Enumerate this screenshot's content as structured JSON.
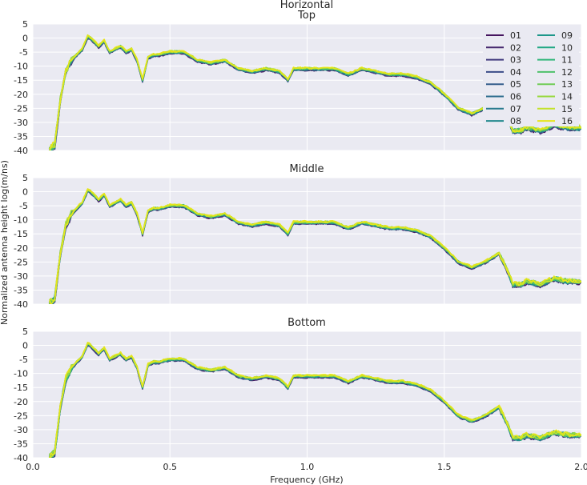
{
  "chart_data": {
    "type": "line",
    "suptitle": "Horizontal",
    "xlabel": "Frequency (GHz)",
    "ylabel": "Normalized antenna height log(m/ns)",
    "xlim": [
      0.0,
      2.0
    ],
    "ylim": [
      -40,
      5
    ],
    "xticks": [
      "0.0",
      "0.5",
      "1.0",
      "1.5",
      "2.0"
    ],
    "yticks": [
      "5",
      "0",
      "-5",
      "-10",
      "-15",
      "-20",
      "-25",
      "-30",
      "-35",
      "-40"
    ],
    "grid": true,
    "colors": [
      "#3f0f54",
      "#46155f",
      "#46286e",
      "#413a7e",
      "#3b4d88",
      "#355d8c",
      "#2e6d8e",
      "#2a7b8e",
      "#23898e",
      "#1e978a",
      "#22a784",
      "#32b67a",
      "#4fc16b",
      "#71cc56",
      "#98d83e",
      "#c3e22c",
      "#e6e51a"
    ],
    "legend": {
      "placement": "upper-right",
      "columns": 2,
      "entries": [
        "01",
        "02",
        "03",
        "04",
        "05",
        "06",
        "07",
        "08",
        "09",
        "10",
        "11",
        "12",
        "13",
        "14",
        "15",
        "16"
      ]
    },
    "base_x": [
      0.06,
      0.08,
      0.1,
      0.12,
      0.14,
      0.16,
      0.18,
      0.2,
      0.21,
      0.22,
      0.24,
      0.26,
      0.28,
      0.3,
      0.32,
      0.34,
      0.36,
      0.38,
      0.4,
      0.42,
      0.44,
      0.46,
      0.5,
      0.55,
      0.6,
      0.65,
      0.7,
      0.75,
      0.8,
      0.85,
      0.9,
      0.93,
      0.95,
      1.0,
      1.05,
      1.1,
      1.15,
      1.2,
      1.25,
      1.3,
      1.35,
      1.4,
      1.45,
      1.5,
      1.55,
      1.6,
      1.65,
      1.7,
      1.73,
      1.75,
      1.78,
      1.8,
      1.85,
      1.9,
      1.95,
      2.0
    ],
    "panels": [
      {
        "title": "Top",
        "x": [
          0.06,
          0.08,
          0.1,
          0.12,
          0.14,
          0.16,
          0.18,
          0.2,
          0.21,
          0.22,
          0.24,
          0.26,
          0.28,
          0.3,
          0.32,
          0.34,
          0.36,
          0.38,
          0.4,
          0.42,
          0.44,
          0.46,
          0.5,
          0.55,
          0.6,
          0.65,
          0.7,
          0.75,
          0.8,
          0.85,
          0.9,
          0.93,
          0.95,
          1.0,
          1.05,
          1.1,
          1.15,
          1.2,
          1.25,
          1.3,
          1.35,
          1.4,
          1.45,
          1.5,
          1.55,
          1.6,
          1.65,
          1.7,
          1.73,
          1.75,
          1.78,
          1.8,
          1.85,
          1.9,
          1.95,
          2.0
        ],
        "y": [
          -40,
          -38,
          -22,
          -12,
          -8,
          -6,
          -4,
          0.5,
          0,
          -1,
          -3,
          -1,
          -5,
          -4,
          -3,
          -5,
          -4,
          -8,
          -15,
          -7,
          -6,
          -6,
          -5,
          -5,
          -8,
          -9,
          -8,
          -11,
          -12,
          -11,
          -12,
          -15,
          -11,
          -11,
          -11,
          -11,
          -13,
          -11,
          -12,
          -13,
          -13,
          -14,
          -16,
          -20,
          -25,
          -27,
          -25,
          -22,
          -28,
          -33,
          -33,
          -32,
          -33,
          -31,
          -32,
          -32
        ]
      },
      {
        "title": "Middle",
        "x": [
          0.06,
          0.08,
          0.1,
          0.12,
          0.14,
          0.16,
          0.18,
          0.2,
          0.21,
          0.22,
          0.24,
          0.26,
          0.28,
          0.3,
          0.32,
          0.34,
          0.36,
          0.38,
          0.4,
          0.42,
          0.44,
          0.46,
          0.5,
          0.55,
          0.6,
          0.65,
          0.7,
          0.75,
          0.8,
          0.85,
          0.9,
          0.93,
          0.95,
          1.0,
          1.05,
          1.1,
          1.15,
          1.2,
          1.25,
          1.3,
          1.35,
          1.4,
          1.45,
          1.5,
          1.55,
          1.6,
          1.65,
          1.7,
          1.73,
          1.75,
          1.78,
          1.8,
          1.85,
          1.9,
          1.95,
          2.0
        ],
        "y": [
          -40,
          -38,
          -22,
          -12,
          -8,
          -6,
          -4,
          0.5,
          0,
          -1,
          -3,
          -1,
          -5,
          -4,
          -3,
          -5,
          -4,
          -8,
          -15,
          -7,
          -6,
          -6,
          -5,
          -5,
          -8,
          -9,
          -8,
          -11,
          -12,
          -11,
          -12,
          -15,
          -11,
          -11,
          -11,
          -11,
          -13,
          -11,
          -12,
          -13,
          -13,
          -14,
          -16,
          -20,
          -25,
          -27,
          -25,
          -22,
          -28,
          -33,
          -33,
          -32,
          -33,
          -31,
          -32,
          -32
        ]
      },
      {
        "title": "Bottom",
        "x": [
          0.06,
          0.08,
          0.1,
          0.12,
          0.14,
          0.16,
          0.18,
          0.2,
          0.21,
          0.22,
          0.24,
          0.26,
          0.28,
          0.3,
          0.32,
          0.34,
          0.36,
          0.38,
          0.4,
          0.42,
          0.44,
          0.46,
          0.5,
          0.55,
          0.6,
          0.65,
          0.7,
          0.75,
          0.8,
          0.85,
          0.9,
          0.93,
          0.95,
          1.0,
          1.05,
          1.1,
          1.15,
          1.2,
          1.25,
          1.3,
          1.35,
          1.4,
          1.45,
          1.5,
          1.55,
          1.6,
          1.65,
          1.7,
          1.73,
          1.75,
          1.78,
          1.8,
          1.85,
          1.9,
          1.95,
          2.0
        ],
        "y": [
          -40,
          -38,
          -22,
          -12,
          -8,
          -6,
          -4,
          0.5,
          0,
          -1,
          -3,
          -1,
          -5,
          -4,
          -3,
          -5,
          -4,
          -8,
          -15,
          -7,
          -6,
          -6,
          -5,
          -5,
          -8,
          -9,
          -8,
          -11,
          -12,
          -11,
          -12,
          -15,
          -11,
          -11,
          -11,
          -11,
          -13,
          -11,
          -12,
          -13,
          -13,
          -14,
          -16,
          -20,
          -25,
          -27,
          -25,
          -22,
          -28,
          -33,
          -33,
          -32,
          -33,
          -31,
          -32,
          -32
        ]
      }
    ]
  }
}
